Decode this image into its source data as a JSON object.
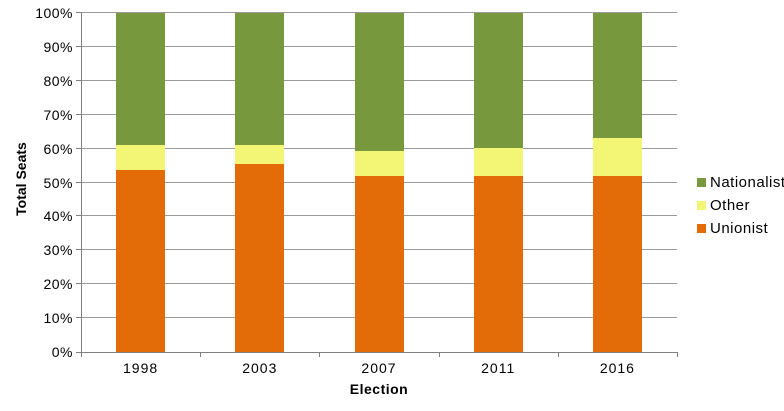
{
  "chart_data": {
    "type": "bar",
    "variant": "stacked-100-percent-column",
    "title": "",
    "xlabel": "Election",
    "ylabel": "Total Seats",
    "categories": [
      "1998",
      "2003",
      "2007",
      "2011",
      "2016"
    ],
    "series": [
      {
        "name": "Unionist",
        "color": "#E36C09",
        "values": [
          53.7,
          55.6,
          51.9,
          51.9,
          51.9
        ]
      },
      {
        "name": "Other",
        "color": "#F3F575",
        "values": [
          7.4,
          5.6,
          7.4,
          8.3,
          11.1
        ]
      },
      {
        "name": "Nationalist",
        "color": "#77983C",
        "values": [
          38.9,
          38.8,
          40.7,
          39.8,
          37.0
        ]
      }
    ],
    "ylim": [
      0,
      100
    ],
    "ytick_step": 10,
    "yticks": [
      "0%",
      "10%",
      "20%",
      "30%",
      "40%",
      "50%",
      "60%",
      "70%",
      "80%",
      "90%",
      "100%"
    ],
    "legend_order": [
      "Nationalist",
      "Other",
      "Unionist"
    ],
    "legend_position": "right",
    "grid": true
  }
}
